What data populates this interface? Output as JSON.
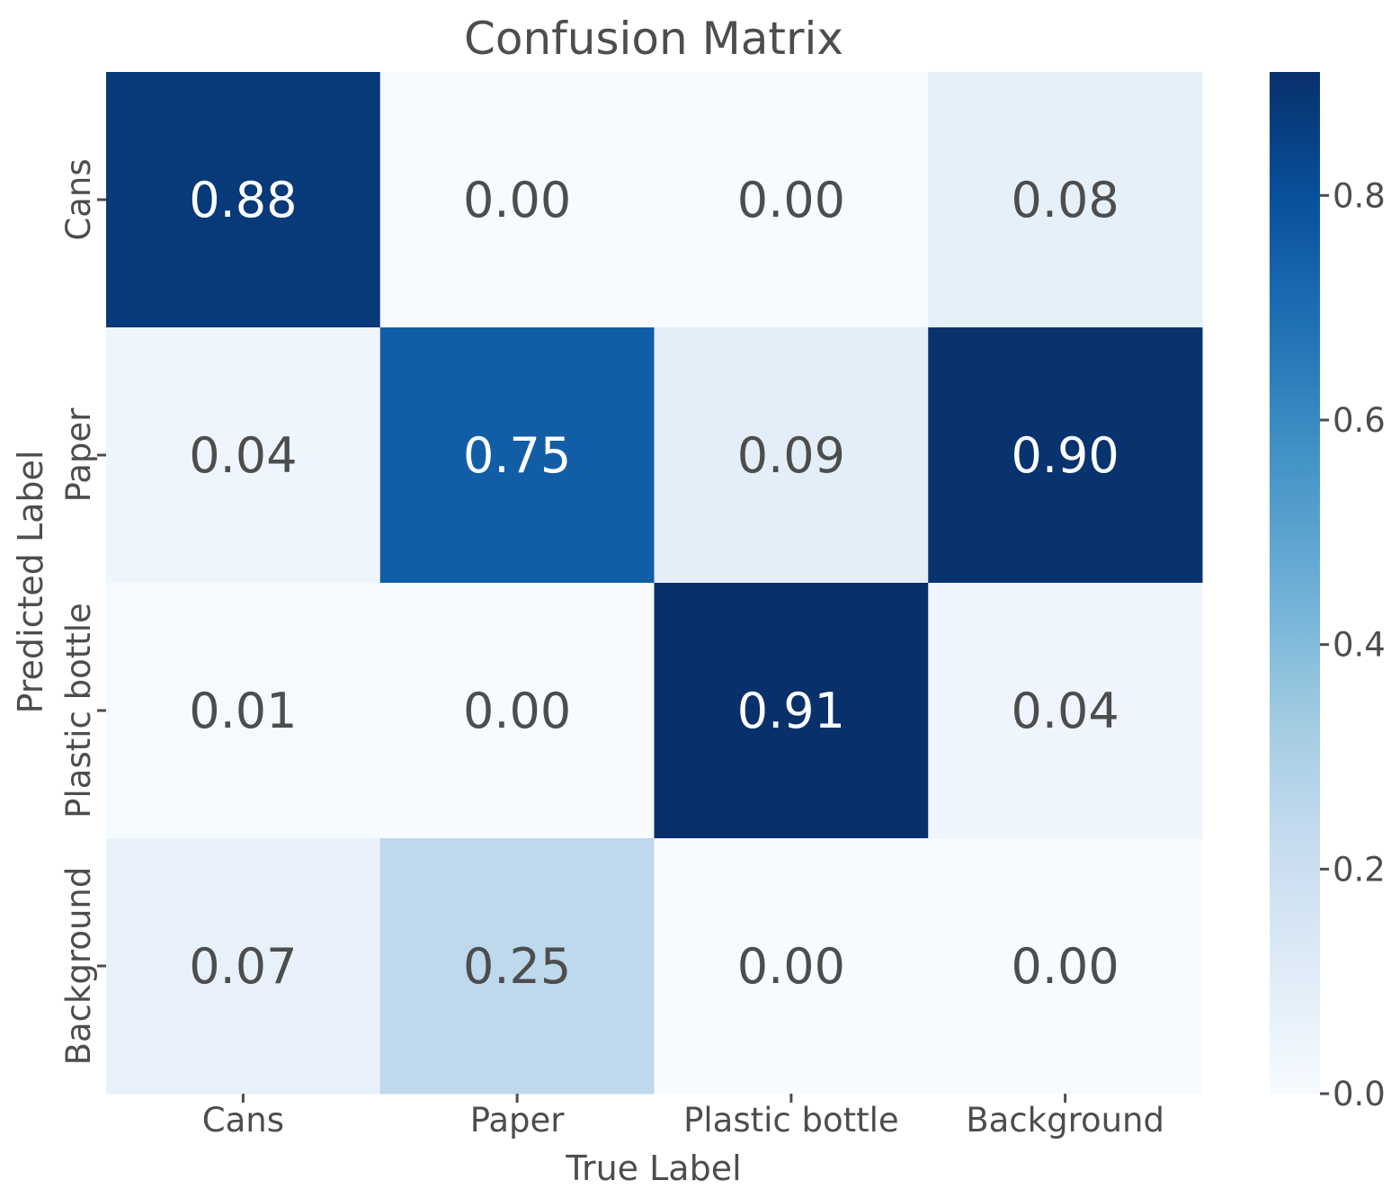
{
  "chart_data": {
    "type": "heatmap",
    "title": "Confusion Matrix",
    "xlabel": "True Label",
    "ylabel": "Predicted Label",
    "x_categories": [
      "Cans",
      "Paper",
      "Plastic bottle",
      "Background"
    ],
    "y_categories": [
      "Cans",
      "Paper",
      "Plastic bottle",
      "Background"
    ],
    "values": [
      [
        0.88,
        0.0,
        0.0,
        0.08
      ],
      [
        0.04,
        0.75,
        0.09,
        0.9
      ],
      [
        0.01,
        0.0,
        0.91,
        0.04
      ],
      [
        0.07,
        0.25,
        0.0,
        0.0
      ]
    ],
    "annotations": [
      [
        "0.88",
        "0.00",
        "0.00",
        "0.08"
      ],
      [
        "0.04",
        "0.75",
        "0.09",
        "0.90"
      ],
      [
        "0.01",
        "0.00",
        "0.91",
        "0.04"
      ],
      [
        "0.07",
        "0.25",
        "0.00",
        "0.00"
      ]
    ],
    "colormap": "Blues",
    "colorbar": {
      "range": [
        0.0,
        0.91
      ],
      "ticks": [
        0.0,
        0.2,
        0.4,
        0.6,
        0.8
      ],
      "tick_labels": [
        "0.0",
        "0.2",
        "0.4",
        "0.6",
        "0.8"
      ]
    },
    "grid": false
  }
}
